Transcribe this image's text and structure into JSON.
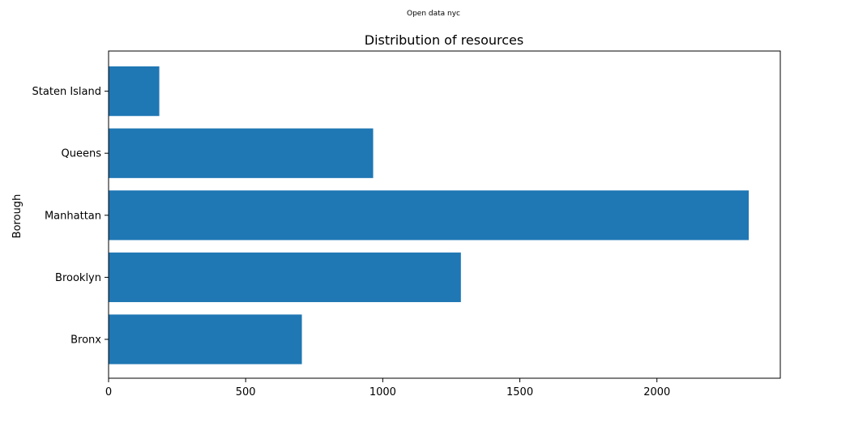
{
  "source_label": "Open data nyc",
  "chart_data": {
    "type": "bar",
    "orientation": "horizontal",
    "title": "Distribution of resources",
    "xlabel": "",
    "ylabel": "Borough",
    "categories": [
      "Bronx",
      "Brooklyn",
      "Manhattan",
      "Queens",
      "Staten Island"
    ],
    "values": [
      705,
      1285,
      2335,
      965,
      185
    ],
    "xlim": [
      0,
      2450
    ],
    "xticks": [
      0,
      500,
      1000,
      1500,
      2000
    ],
    "bar_color": "#1f77b4",
    "grid": false,
    "legend": "none"
  }
}
